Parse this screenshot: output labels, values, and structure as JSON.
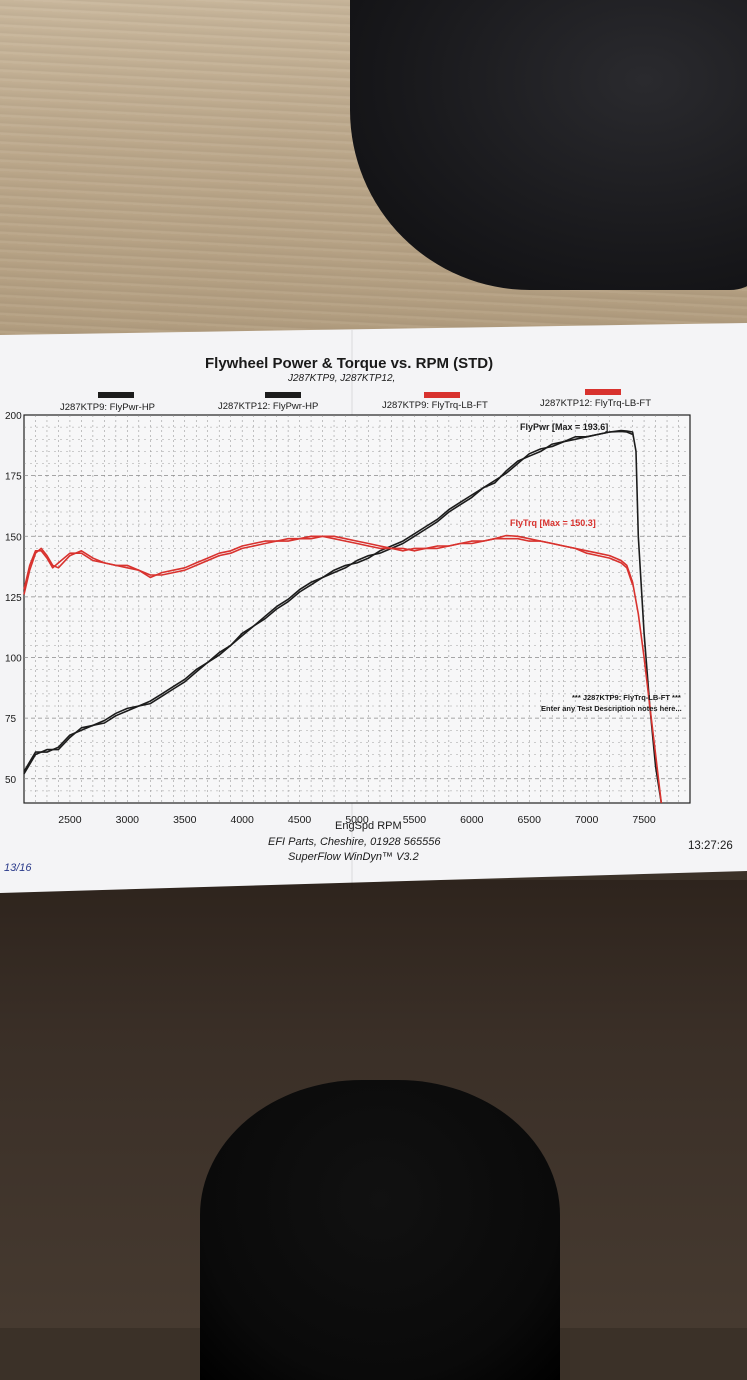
{
  "colors": {
    "power": "#1c1c1c",
    "torque": "#d8322e",
    "grid": "#8a8a8a"
  },
  "chart_data": {
    "type": "line",
    "title": "Flywheel Power & Torque vs. RPM (STD)",
    "subtitle": "J287KTP9, J287KTP12,",
    "xlabel": "EngSpd RPM",
    "xlim": [
      2100,
      7900
    ],
    "ylim": [
      40,
      200
    ],
    "x_ticks": [
      "2500",
      "3000",
      "3500",
      "4000",
      "4500",
      "5000",
      "5500",
      "6000",
      "6500",
      "7000",
      "7500"
    ],
    "y_ticks": [
      "200",
      "175",
      "150",
      "125",
      "100",
      "75",
      "50"
    ],
    "grid": true,
    "legend_position": "top",
    "legend": [
      {
        "label": "J287KTP9: FlyPwr-HP",
        "color": "#1c1c1c"
      },
      {
        "label": "J287KTP12: FlyPwr-HP",
        "color": "#1c1c1c"
      },
      {
        "label": "J287KTP9: FlyTrq-LB-FT",
        "color": "#d8322e"
      },
      {
        "label": "J287KTP12: FlyTrq-LB-FT",
        "color": "#d8322e"
      }
    ],
    "annotations": {
      "power_max": "FlyPwr [Max = 193.6]",
      "torque_max": "FlyTrq [Max = 150.3]",
      "note1": "*** J287KTP9: FlyTrq-LB-FT ***",
      "note2": "Enter any Test Description notes here..."
    },
    "series": [
      {
        "name": "J287KTP9: FlyPwr-HP",
        "color": "#1c1c1c",
        "x": [
          2100,
          2200,
          2300,
          2400,
          2500,
          2600,
          2700,
          2800,
          2900,
          3000,
          3100,
          3200,
          3300,
          3400,
          3500,
          3600,
          3700,
          3800,
          3900,
          4000,
          4100,
          4200,
          4300,
          4400,
          4500,
          4600,
          4700,
          4800,
          4900,
          5000,
          5100,
          5200,
          5300,
          5400,
          5500,
          5600,
          5700,
          5800,
          5900,
          6000,
          6100,
          6200,
          6300,
          6400,
          6500,
          6600,
          6700,
          6800,
          6900,
          7000,
          7100,
          7200,
          7300,
          7350,
          7400,
          7430,
          7450,
          7500,
          7550,
          7600,
          7650
        ],
        "y": [
          52,
          60,
          62,
          62,
          67,
          71,
          72,
          73,
          76,
          78,
          80,
          81,
          84,
          87,
          90,
          94,
          98,
          102,
          105,
          109,
          113,
          116,
          120,
          123,
          127,
          130,
          133,
          135,
          137,
          140,
          142,
          143,
          145,
          147,
          150,
          153,
          156,
          160,
          163,
          166,
          170,
          173,
          176,
          180,
          184,
          186,
          187,
          189,
          190,
          191,
          192,
          193,
          193.6,
          193.4,
          193,
          185,
          150,
          110,
          80,
          55,
          40
        ]
      },
      {
        "name": "J287KTP12: FlyPwr-HP",
        "color": "#1c1c1c",
        "x": [
          2100,
          2200,
          2300,
          2400,
          2500,
          2600,
          2700,
          2800,
          2900,
          3000,
          3100,
          3200,
          3300,
          3400,
          3500,
          3600,
          3700,
          3800,
          3900,
          4000,
          4100,
          4200,
          4300,
          4400,
          4500,
          4600,
          4700,
          4800,
          4900,
          5000,
          5100,
          5200,
          5300,
          5400,
          5500,
          5600,
          5700,
          5800,
          5900,
          6000,
          6100,
          6200,
          6300,
          6400,
          6500,
          6600,
          6700,
          6800,
          6900,
          7000,
          7100,
          7200,
          7300,
          7350,
          7400
        ],
        "y": [
          53,
          61,
          61,
          63,
          68,
          70,
          72,
          74,
          77,
          79,
          80,
          82,
          85,
          88,
          91,
          95,
          98,
          101,
          105,
          110,
          113,
          117,
          121,
          124,
          128,
          131,
          133,
          136,
          138,
          139,
          141,
          144,
          146,
          148,
          151,
          154,
          157,
          161,
          164,
          167,
          170,
          172,
          177,
          181,
          183,
          185,
          188,
          189,
          191,
          191,
          192,
          193,
          193.2,
          193,
          192
        ]
      },
      {
        "name": "J287KTP9: FlyTrq-LB-FT",
        "color": "#d8322e",
        "x": [
          2100,
          2150,
          2200,
          2250,
          2300,
          2350,
          2400,
          2500,
          2600,
          2700,
          2800,
          2900,
          3000,
          3100,
          3200,
          3300,
          3400,
          3500,
          3600,
          3700,
          3800,
          3900,
          4000,
          4100,
          4200,
          4300,
          4400,
          4500,
          4600,
          4700,
          4800,
          4900,
          5000,
          5100,
          5200,
          5300,
          5400,
          5500,
          5600,
          5700,
          5800,
          5900,
          6000,
          6100,
          6200,
          6300,
          6400,
          6500,
          6600,
          6700,
          6800,
          6900,
          7000,
          7100,
          7200,
          7300,
          7350,
          7400,
          7450,
          7500,
          7550,
          7600,
          7650
        ],
        "y": [
          126,
          136,
          143,
          145,
          142,
          138,
          137,
          142,
          144,
          141,
          139,
          138,
          137,
          136,
          134,
          134,
          135,
          136,
          138,
          140,
          142,
          143,
          145,
          146,
          147,
          148,
          148,
          149,
          149,
          150,
          150,
          149,
          148,
          147,
          146,
          145,
          144,
          145,
          145,
          145,
          146,
          147,
          148,
          148,
          149,
          150.3,
          150,
          149,
          148,
          147,
          146,
          145,
          144,
          143,
          142,
          140,
          138,
          131,
          118,
          100,
          80,
          60,
          40
        ]
      },
      {
        "name": "J287KTP12: FlyTrq-LB-FT",
        "color": "#d8322e",
        "x": [
          2100,
          2150,
          2200,
          2250,
          2300,
          2350,
          2400,
          2500,
          2600,
          2700,
          2800,
          2900,
          3000,
          3100,
          3200,
          3300,
          3400,
          3500,
          3600,
          3700,
          3800,
          3900,
          4000,
          4100,
          4200,
          4300,
          4400,
          4500,
          4600,
          4700,
          4800,
          4900,
          5000,
          5100,
          5200,
          5300,
          5400,
          5500,
          5600,
          5700,
          5800,
          5900,
          6000,
          6100,
          6200,
          6300,
          6400,
          6500,
          6600,
          6700,
          6800,
          6900,
          7000,
          7100,
          7200,
          7300,
          7350,
          7400
        ],
        "y": [
          128,
          138,
          144,
          144,
          141,
          137,
          139,
          143,
          143,
          140,
          139,
          138,
          138,
          136,
          133,
          135,
          136,
          137,
          139,
          141,
          143,
          144,
          146,
          147,
          148,
          148,
          149,
          149,
          150,
          150,
          149,
          148,
          147,
          146,
          145,
          145,
          145,
          144,
          145,
          146,
          146,
          147,
          147,
          148,
          149,
          149,
          149,
          148,
          148,
          147,
          146,
          145,
          143,
          142,
          141,
          139,
          137,
          130
        ]
      }
    ]
  },
  "footer": {
    "line1": "EFI Parts, Cheshire, 01928 565556",
    "line2": "SuperFlow WinDyn™ V3.2",
    "time": "13:27:26",
    "date_fragment": "13/16"
  }
}
